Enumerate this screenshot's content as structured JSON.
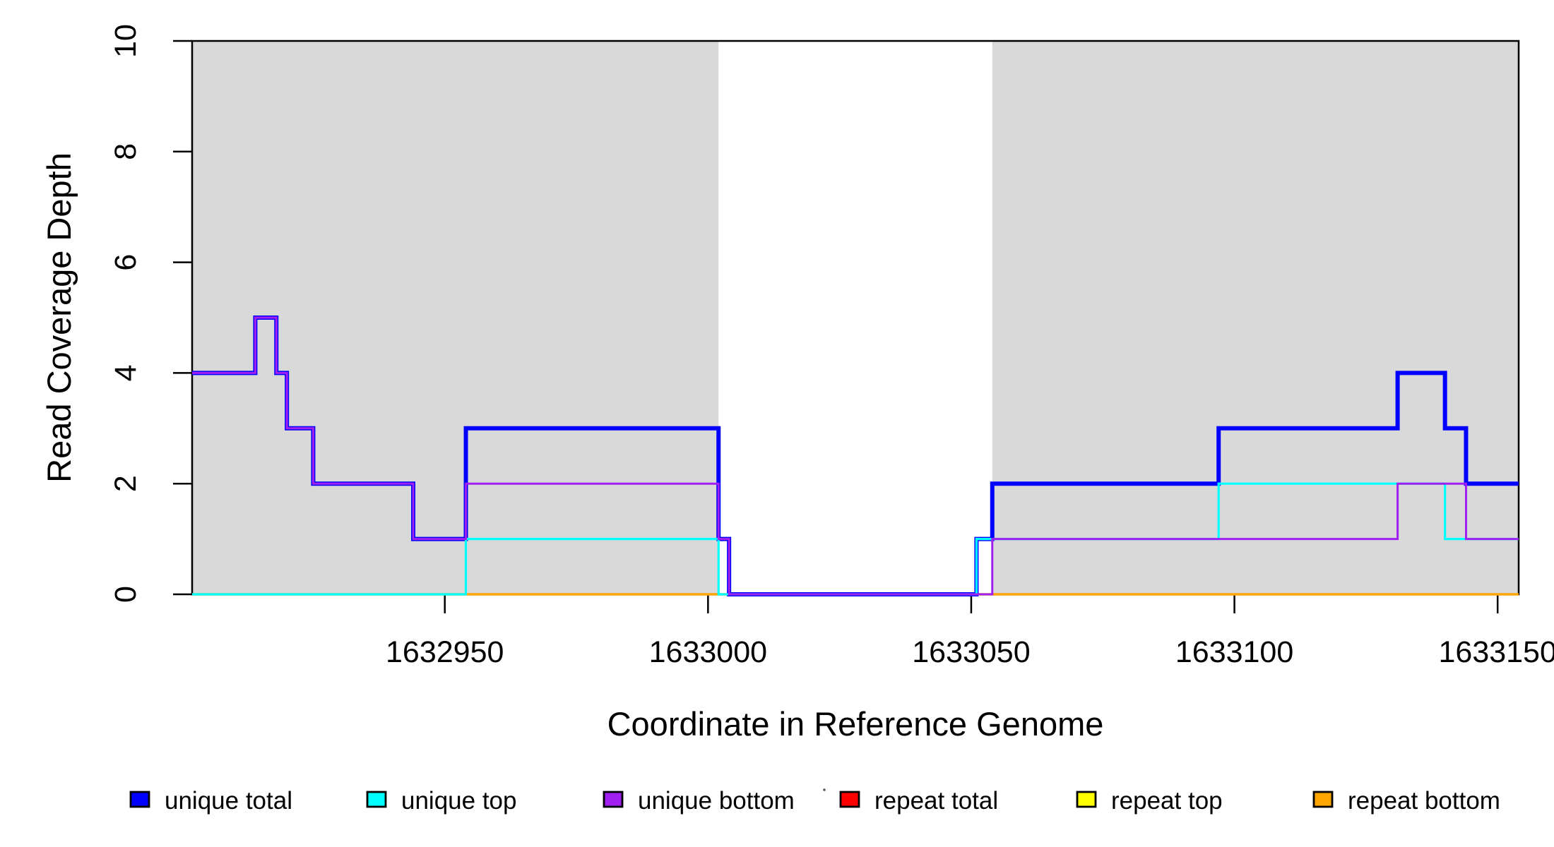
{
  "chart_data": {
    "type": "line",
    "subtype": "step-coverage-plot",
    "title": "",
    "xlabel": "Coordinate in Reference Genome",
    "ylabel": "Read Coverage Depth",
    "xlim": [
      1632902,
      1633154
    ],
    "ylim": [
      0,
      10
    ],
    "x_ticks": [
      "1632950",
      "1633000",
      "1633050",
      "1633100",
      "1633150"
    ],
    "x_tick_values": [
      1632950,
      1633000,
      1633050,
      1633100,
      1633150
    ],
    "y_ticks": [
      "0",
      "2",
      "4",
      "6",
      "8",
      "10"
    ],
    "y_tick_values": [
      0,
      2,
      4,
      6,
      8,
      10
    ],
    "grid": "off",
    "shade_color": "#d9d9d9",
    "shaded_regions": [
      {
        "x0": 1632902,
        "x1": 1633002
      },
      {
        "x0": 1633054,
        "x1": 1633154
      }
    ],
    "series": [
      {
        "name": "repeat total",
        "color": "#ff0000",
        "line_width": 3.0,
        "steps": [
          [
            1632902,
            0
          ]
        ]
      },
      {
        "name": "repeat top",
        "color": "#ffff00",
        "line_width": 3.0,
        "steps": [
          [
            1632902,
            0
          ]
        ]
      },
      {
        "name": "repeat bottom",
        "color": "#ffa500",
        "line_width": 3.5,
        "steps": [
          [
            1632902,
            0
          ]
        ]
      },
      {
        "name": "unique total",
        "color": "#0000ff",
        "line_width": 6.0,
        "steps": [
          [
            1632902,
            4
          ],
          [
            1632914,
            5
          ],
          [
            1632918,
            4
          ],
          [
            1632920,
            3
          ],
          [
            1632925,
            2
          ],
          [
            1632944,
            1
          ],
          [
            1632954,
            3
          ],
          [
            1633002,
            1
          ],
          [
            1633004,
            0
          ],
          [
            1633051,
            1
          ],
          [
            1633054,
            2
          ],
          [
            1633097,
            3
          ],
          [
            1633131,
            4
          ],
          [
            1633140,
            3
          ],
          [
            1633144,
            2
          ]
        ]
      },
      {
        "name": "unique top",
        "color": "#00ffff",
        "line_width": 3.2,
        "steps": [
          [
            1632902,
            0
          ],
          [
            1632954,
            1
          ],
          [
            1633002,
            0
          ],
          [
            1633051,
            1
          ],
          [
            1633097,
            2
          ],
          [
            1633140,
            1
          ]
        ]
      },
      {
        "name": "unique bottom",
        "color": "#a020f0",
        "line_width": 3.0,
        "steps": [
          [
            1632902,
            4
          ],
          [
            1632914,
            5
          ],
          [
            1632918,
            4
          ],
          [
            1632920,
            3
          ],
          [
            1632925,
            2
          ],
          [
            1632944,
            1
          ],
          [
            1632954,
            2
          ],
          [
            1633002,
            1
          ],
          [
            1633004,
            0
          ],
          [
            1633054,
            1
          ],
          [
            1633131,
            2
          ],
          [
            1633144,
            1
          ]
        ]
      }
    ],
    "legend": [
      {
        "label": "unique total",
        "color": "#0000ff"
      },
      {
        "label": "unique top",
        "color": "#00ffff"
      },
      {
        "label": "unique bottom",
        "color": "#a020f0"
      },
      {
        "label": "repeat total",
        "color": "#ff0000"
      },
      {
        "label": "repeat top",
        "color": "#ffff00"
      },
      {
        "label": "repeat bottom",
        "color": "#ffa500"
      }
    ],
    "legend_position": "bottom",
    "axis_color": "#000000"
  }
}
